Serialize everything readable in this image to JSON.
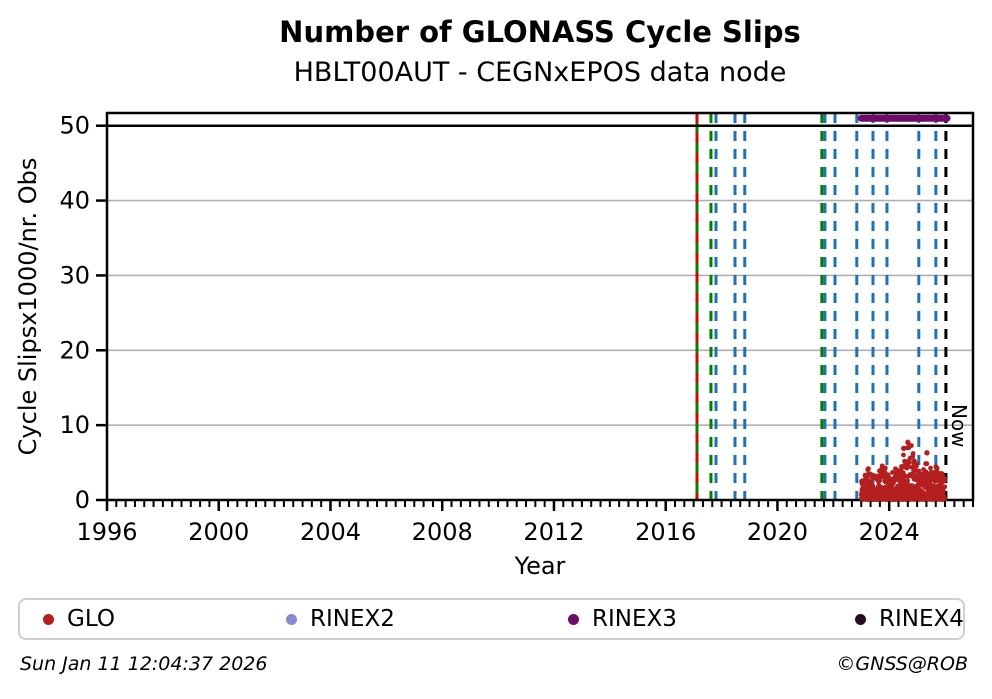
{
  "title": "Number of GLONASS Cycle Slips",
  "subtitle": "HBLT00AUT - CEGNxEPOS data node",
  "footer": {
    "timestamp": "Sun Jan 11 12:04:37 2026",
    "credit": "©GNSS@ROB"
  },
  "legend": {
    "items": [
      {
        "label": "GLO",
        "color": "#b41f1f"
      },
      {
        "label": "RINEX2",
        "color": "#8a8ace"
      },
      {
        "label": "RINEX3",
        "color": "#6e0b69"
      },
      {
        "label": "RINEX4",
        "color": "#260b26"
      }
    ]
  },
  "chart_data": {
    "type": "scatter",
    "title": "Number of GLONASS Cycle Slips",
    "subtitle": "HBLT00AUT - CEGNxEPOS data node",
    "xlabel": "Year",
    "ylabel": "Cycle Slipsx1000/nr. Obs",
    "x_range": [
      1996,
      2027
    ],
    "y_range": [
      0,
      51.7
    ],
    "x_major_ticks": [
      1996,
      2000,
      2004,
      2008,
      2012,
      2016,
      2020,
      2024
    ],
    "x_minor_step": 0.33333,
    "y_ticks": [
      0,
      10,
      20,
      30,
      40,
      50
    ],
    "grid_values": [
      0,
      10,
      20,
      30,
      40
    ],
    "dark_line_value": 50,
    "grid_color": "#b0b0b0",
    "now_line": {
      "label": "Now",
      "year": 2026.03,
      "color": "#000000",
      "dash": "10 8"
    },
    "event_lines": [
      {
        "year": 2017.12,
        "color": "#008000",
        "dash": "none"
      },
      {
        "year": 2017.12,
        "color": "#dd0000",
        "dash": "10 10"
      },
      {
        "year": 2017.62,
        "color": "#008000",
        "dash": "10 8"
      },
      {
        "year": 2017.8,
        "color": "#1f72b8",
        "dash": "10 8"
      },
      {
        "year": 2018.48,
        "color": "#1f72b8",
        "dash": "10 8"
      },
      {
        "year": 2018.83,
        "color": "#1f72b8",
        "dash": "10 8"
      },
      {
        "year": 2021.59,
        "color": "#008000",
        "dash": "10 8"
      },
      {
        "year": 2021.7,
        "color": "#1f72b8",
        "dash": "10 8"
      },
      {
        "year": 2022.06,
        "color": "#1f72b8",
        "dash": "10 8"
      },
      {
        "year": 2022.84,
        "color": "#1f72b8",
        "dash": "10 8"
      },
      {
        "year": 2023.42,
        "color": "#1f72b8",
        "dash": "10 8"
      },
      {
        "year": 2023.92,
        "color": "#1f72b8",
        "dash": "10 8"
      },
      {
        "year": 2025.06,
        "color": "#1f72b8",
        "dash": "10 8"
      },
      {
        "year": 2025.67,
        "color": "#1f72b8",
        "dash": "10 8"
      }
    ],
    "rinex3_line": {
      "series": "RINEX3",
      "start": 2023.0,
      "end": 2026.07,
      "value": 51.0,
      "color": "#6e0b69"
    },
    "glo_scatter": {
      "series": "GLO",
      "color": "#b41f1f",
      "time_span": [
        2023.0,
        2026.0
      ],
      "bin_width": 0.1,
      "points_per_bin": 26,
      "bins": [
        {
          "t": 2023.0,
          "max": 2.6
        },
        {
          "t": 2023.1,
          "max": 3.4
        },
        {
          "t": 2023.2,
          "max": 4.2
        },
        {
          "t": 2023.3,
          "max": 3.6
        },
        {
          "t": 2023.4,
          "max": 3.0
        },
        {
          "t": 2023.5,
          "max": 3.3
        },
        {
          "t": 2023.6,
          "max": 4.0
        },
        {
          "t": 2023.7,
          "max": 4.7
        },
        {
          "t": 2023.8,
          "max": 4.3
        },
        {
          "t": 2023.9,
          "max": 3.4
        },
        {
          "t": 2024.0,
          "max": 3.0
        },
        {
          "t": 2024.1,
          "max": 3.8
        },
        {
          "t": 2024.2,
          "max": 4.3
        },
        {
          "t": 2024.3,
          "max": 3.6
        },
        {
          "t": 2024.4,
          "max": 4.5
        },
        {
          "t": 2024.5,
          "max": 6.2
        },
        {
          "t": 2024.6,
          "max": 7.2
        },
        {
          "t": 2024.7,
          "max": 7.5
        },
        {
          "t": 2024.8,
          "max": 6.4
        },
        {
          "t": 2024.9,
          "max": 5.0
        },
        {
          "t": 2025.0,
          "max": 4.0
        },
        {
          "t": 2025.1,
          "max": 3.6
        },
        {
          "t": 2025.2,
          "max": 4.2
        },
        {
          "t": 2025.3,
          "max": 5.0
        },
        {
          "t": 2025.4,
          "max": 4.4
        },
        {
          "t": 2025.5,
          "max": 3.8
        },
        {
          "t": 2025.6,
          "max": 4.6
        },
        {
          "t": 2025.7,
          "max": 4.4
        },
        {
          "t": 2025.8,
          "max": 3.6
        },
        {
          "t": 2025.9,
          "max": 3.0
        }
      ],
      "outliers": [
        [
          2024.67,
          7.7
        ],
        [
          2025.35,
          6.3
        ],
        [
          2024.52,
          6.9
        ]
      ]
    }
  }
}
